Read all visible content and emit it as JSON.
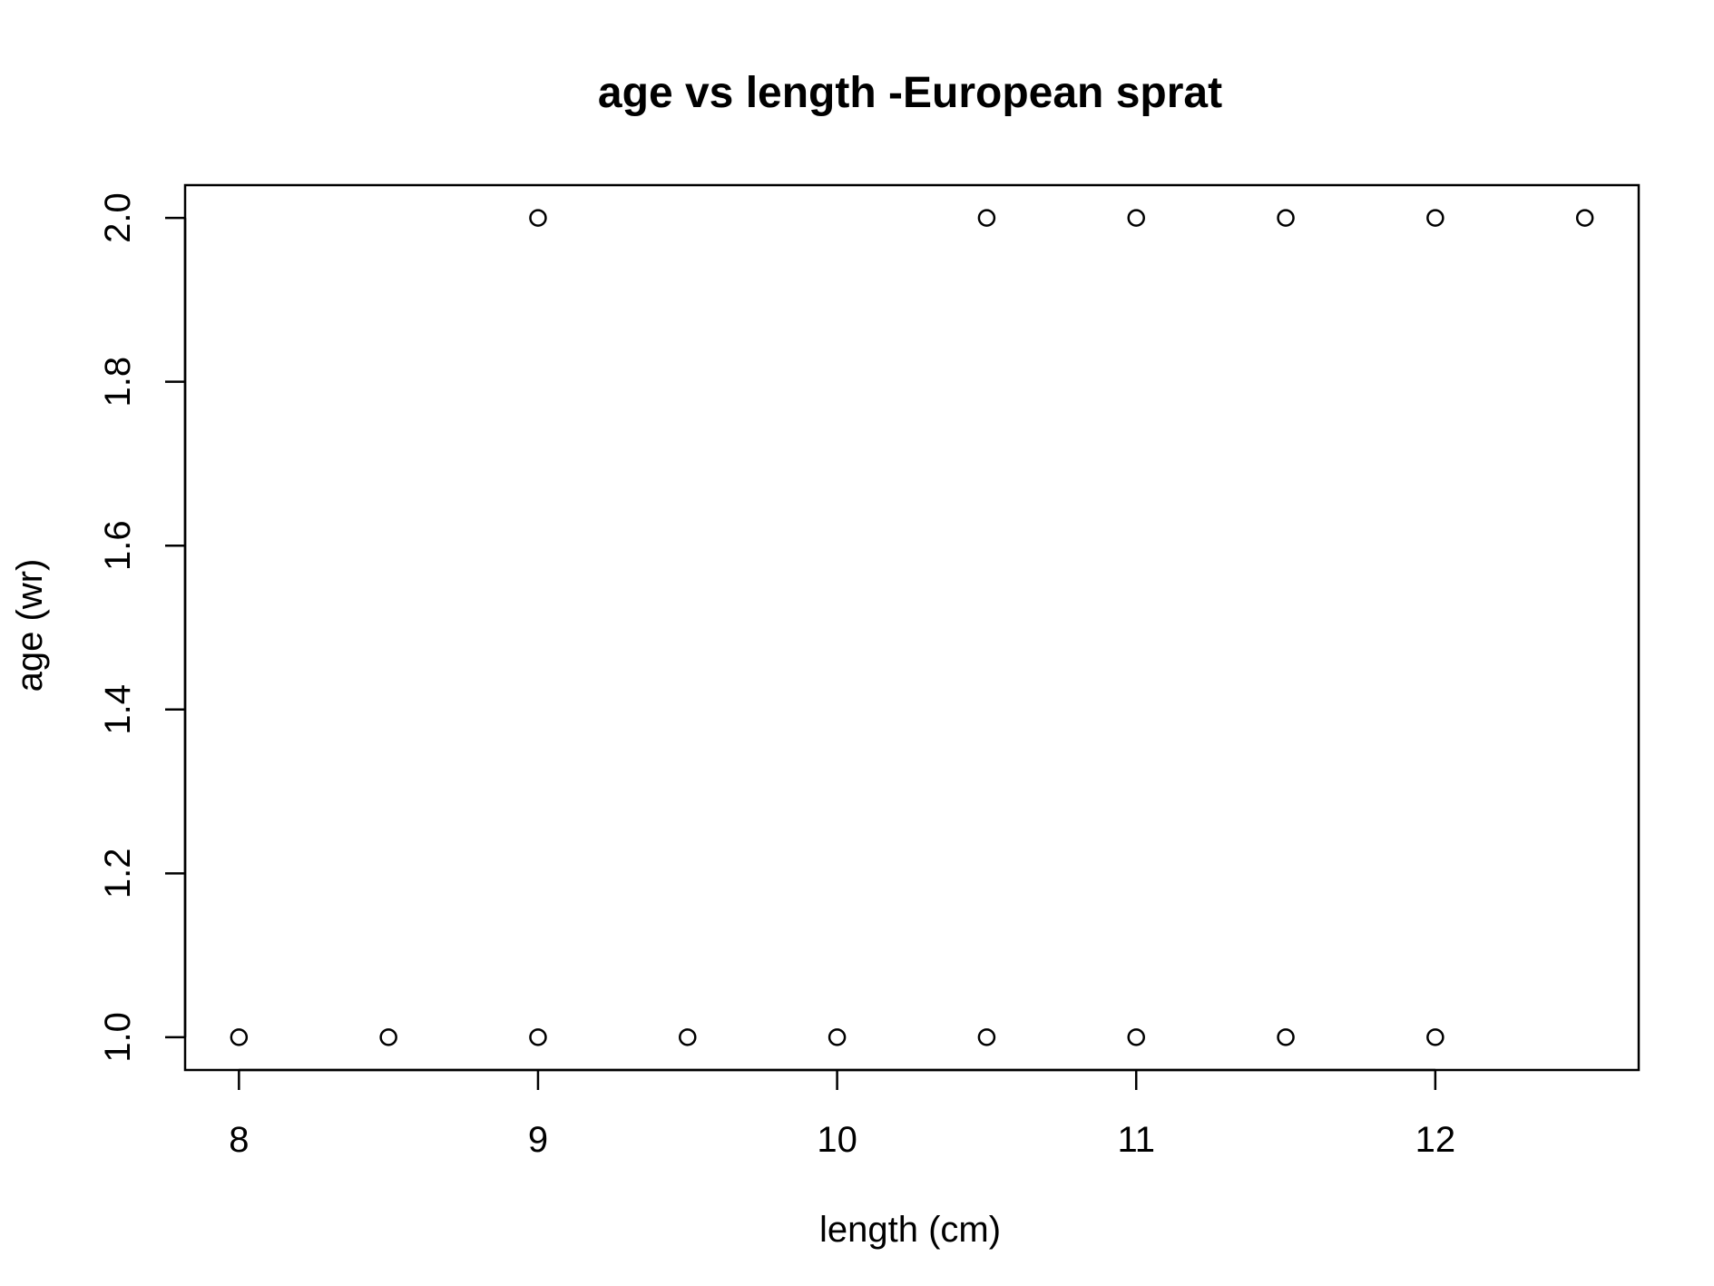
{
  "chart_data": {
    "type": "scatter",
    "title": "age vs length -European sprat",
    "xlabel": "length (cm)",
    "ylabel": "age (wr)",
    "x_ticks": [
      8,
      9,
      10,
      11,
      12
    ],
    "x_tick_labels": [
      "8",
      "9",
      "10",
      "11",
      "12"
    ],
    "y_ticks": [
      1.0,
      1.2,
      1.4,
      1.6,
      1.8,
      2.0
    ],
    "y_tick_labels": [
      "1.0",
      "1.2",
      "1.4",
      "1.6",
      "1.8",
      "2.0"
    ],
    "xlim": [
      7.82,
      12.68
    ],
    "ylim": [
      0.96,
      2.04
    ],
    "grid": false,
    "marker": "open-circle",
    "color": "#000000",
    "points": [
      {
        "x": 8.0,
        "y": 1.0
      },
      {
        "x": 8.5,
        "y": 1.0
      },
      {
        "x": 9.0,
        "y": 1.0
      },
      {
        "x": 9.5,
        "y": 1.0
      },
      {
        "x": 10.0,
        "y": 1.0
      },
      {
        "x": 10.5,
        "y": 1.0
      },
      {
        "x": 11.0,
        "y": 1.0
      },
      {
        "x": 11.5,
        "y": 1.0
      },
      {
        "x": 12.0,
        "y": 1.0
      },
      {
        "x": 9.0,
        "y": 2.0
      },
      {
        "x": 10.5,
        "y": 2.0
      },
      {
        "x": 11.0,
        "y": 2.0
      },
      {
        "x": 11.5,
        "y": 2.0
      },
      {
        "x": 12.0,
        "y": 2.0
      },
      {
        "x": 12.5,
        "y": 2.0
      }
    ]
  }
}
